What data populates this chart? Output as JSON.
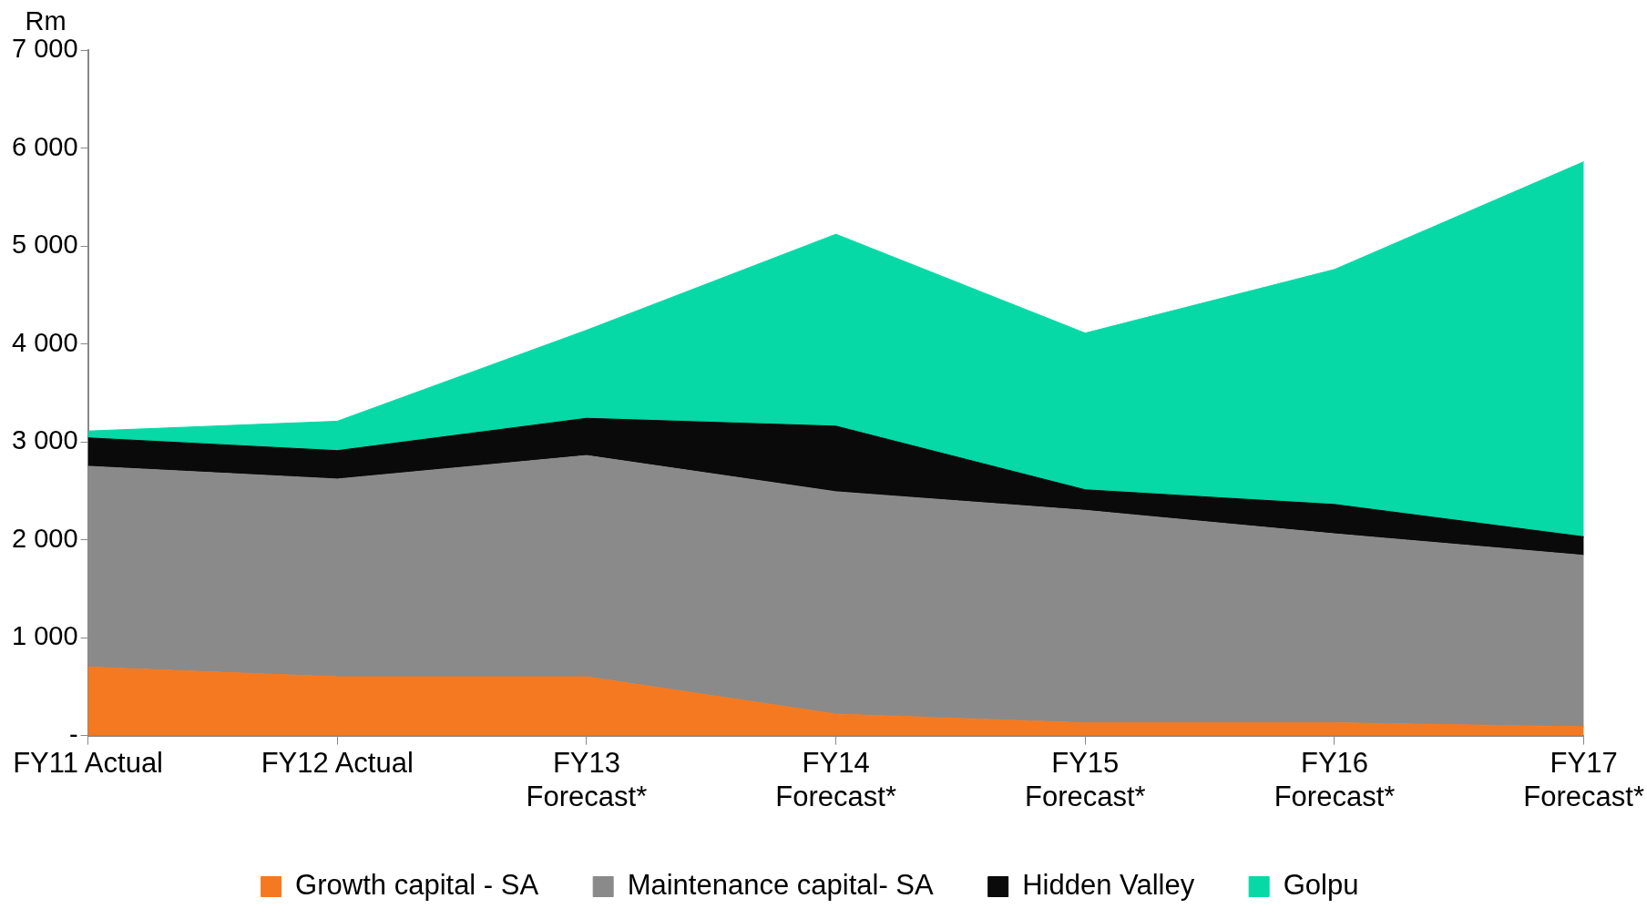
{
  "chart_data": {
    "type": "area",
    "stacked": true,
    "ylabel": "Rm",
    "categories": [
      "FY11 Actual",
      "FY12 Actual",
      "FY13 Forecast*",
      "FY14 Forecast*",
      "FY15 Forecast*",
      "FY16 Forecast*",
      "FY17 Forecast*"
    ],
    "series": [
      {
        "name": "Growth capital - SA",
        "color": "#f47920",
        "values": [
          700,
          600,
          600,
          220,
          130,
          130,
          90
        ]
      },
      {
        "name": "Maintenance capital- SA",
        "color": "#8a8a8a",
        "values": [
          2050,
          2020,
          2260,
          2270,
          2170,
          1930,
          1750
        ]
      },
      {
        "name": "Hidden Valley",
        "color": "#0a0a0a",
        "values": [
          290,
          290,
          380,
          670,
          210,
          300,
          190
        ]
      },
      {
        "name": "Golpu",
        "color": "#06d9a6",
        "values": [
          70,
          300,
          900,
          1960,
          1600,
          2400,
          3830
        ]
      }
    ],
    "ylim": [
      0,
      7000
    ],
    "yticks": [
      {
        "value": 0,
        "label": "-"
      },
      {
        "value": 1000,
        "label": "1 000"
      },
      {
        "value": 2000,
        "label": "2 000"
      },
      {
        "value": 3000,
        "label": "3 000"
      },
      {
        "value": 4000,
        "label": "4 000"
      },
      {
        "value": 5000,
        "label": "5 000"
      },
      {
        "value": 6000,
        "label": "6 000"
      },
      {
        "value": 7000,
        "label": "7 000"
      }
    ],
    "grid": false,
    "legend": "bottom",
    "marker": "none"
  }
}
